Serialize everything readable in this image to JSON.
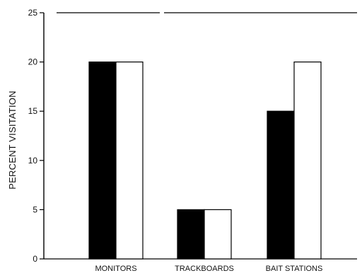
{
  "chart_data": {
    "type": "bar",
    "title": "",
    "xlabel": "",
    "ylabel": "PERCENT VISITATION",
    "ylim": [
      0,
      25
    ],
    "yticks": [
      0,
      5,
      10,
      15,
      20,
      25
    ],
    "ytick_labels": [
      "0",
      "5",
      "10",
      "15",
      "20",
      "25"
    ],
    "categories": [
      "MONITORS",
      "TRACKBOARDS",
      "BAIT STATIONS"
    ],
    "series": [
      {
        "values": [
          20,
          5,
          15
        ],
        "color": "#000000"
      },
      {
        "values": [
          20,
          5,
          20
        ],
        "color": "#ffffff"
      }
    ],
    "grid": false,
    "legend": "none"
  }
}
